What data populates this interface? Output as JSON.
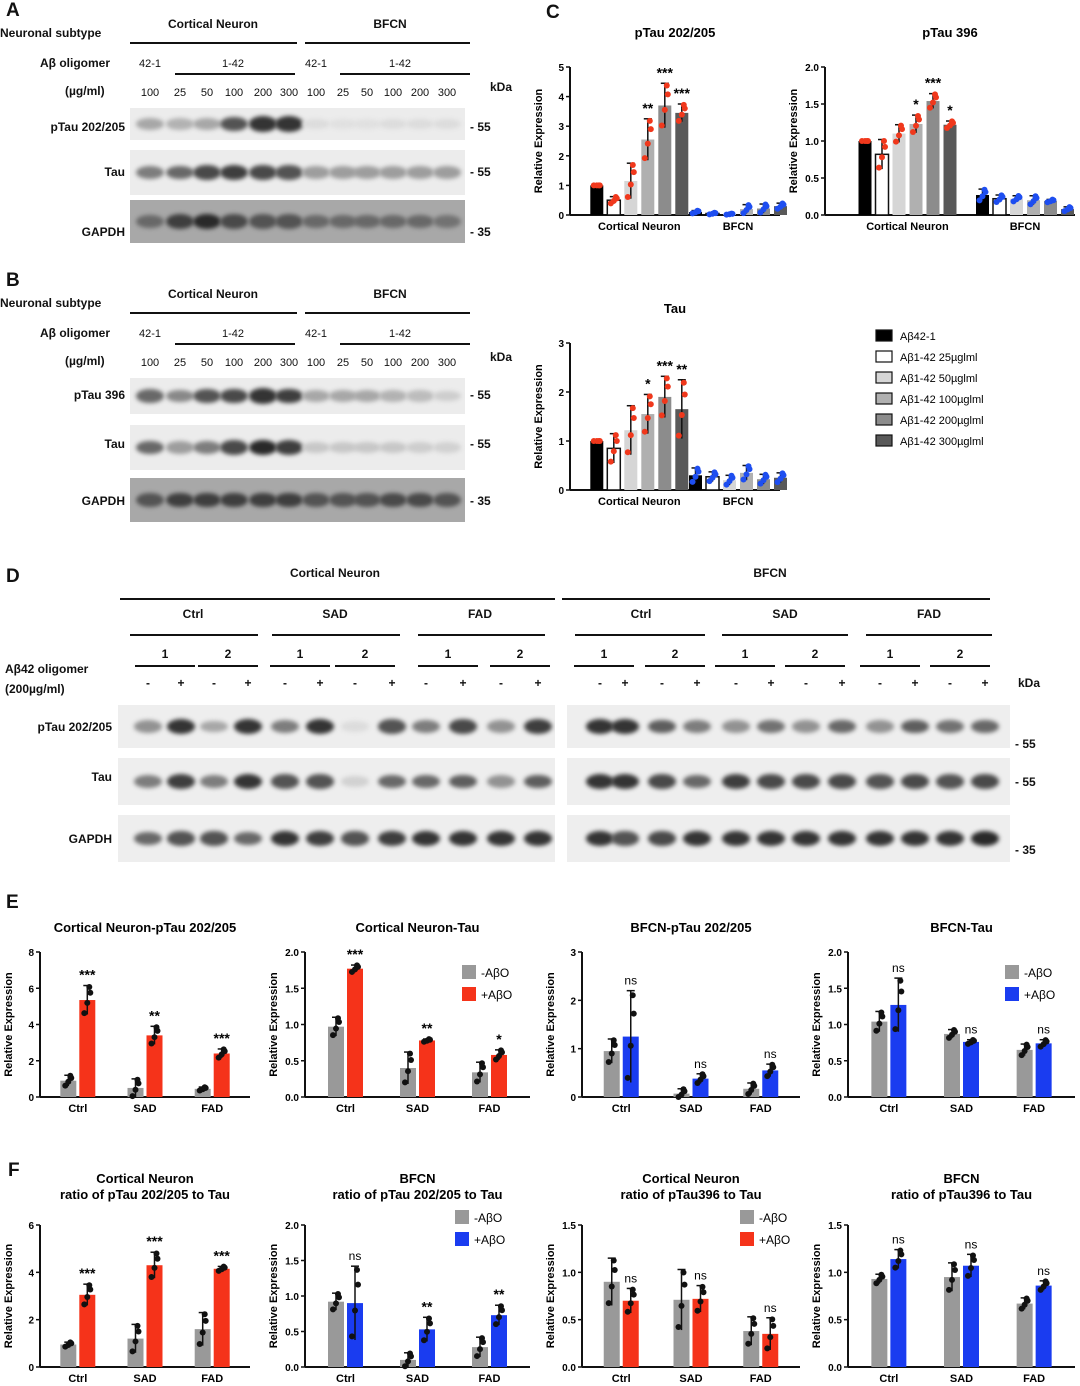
{
  "panels": {
    "A": "A",
    "B": "B",
    "C": "C",
    "D": "D",
    "E": "E",
    "F": "F"
  },
  "blot_labels": {
    "subtype": "Neuronal subtype",
    "oligomer": "Aβ oligomer",
    "conc": "(µg/ml)",
    "cortical": "Cortical Neuron",
    "bfcn": "BFCN",
    "scr": "42-1",
    "ab": "1-42",
    "kda": "kDa",
    "lanes": [
      "100",
      "25",
      "50",
      "100",
      "200",
      "300",
      "100",
      "25",
      "50",
      "100",
      "200",
      "300"
    ]
  },
  "blot_A": {
    "rows": [
      {
        "label": "pTau 202/205",
        "marker": "- 55",
        "intensity": [
          0.3,
          0.25,
          0.3,
          0.7,
          0.85,
          0.85,
          0.05,
          0.03,
          0.03,
          0.05,
          0.05,
          0.05
        ]
      },
      {
        "label": "Tau",
        "marker": "- 55",
        "intensity": [
          0.5,
          0.6,
          0.75,
          0.8,
          0.75,
          0.7,
          0.35,
          0.35,
          0.35,
          0.35,
          0.35,
          0.35
        ]
      },
      {
        "label": "GAPDH",
        "marker": "- 35",
        "intensity": [
          0.6,
          0.8,
          0.9,
          0.75,
          0.7,
          0.7,
          0.6,
          0.6,
          0.6,
          0.6,
          0.6,
          0.55
        ]
      }
    ]
  },
  "blot_B": {
    "rows": [
      {
        "label": "pTau 396",
        "marker": "- 55",
        "intensity": [
          0.6,
          0.45,
          0.7,
          0.75,
          0.85,
          0.8,
          0.3,
          0.3,
          0.3,
          0.25,
          0.2,
          0.12
        ]
      },
      {
        "label": "Tau",
        "marker": "- 55",
        "intensity": [
          0.6,
          0.35,
          0.5,
          0.75,
          0.9,
          0.8,
          0.15,
          0.15,
          0.15,
          0.15,
          0.12,
          0.1
        ]
      },
      {
        "label": "GAPDH",
        "marker": "- 35",
        "intensity": [
          0.7,
          0.8,
          0.8,
          0.8,
          0.8,
          0.8,
          0.7,
          0.7,
          0.7,
          0.75,
          0.75,
          0.7
        ]
      }
    ]
  },
  "blot_D": {
    "cortical": "Cortical Neuron",
    "bfcn": "BFCN",
    "groups": [
      "Ctrl",
      "SAD",
      "FAD",
      "Ctrl",
      "SAD",
      "FAD"
    ],
    "lines": [
      "1",
      "2"
    ],
    "treat": [
      "-",
      "+"
    ],
    "oligomer": "Aβ42  oligomer",
    "conc": "(200µg/ml)",
    "kda": "kDa",
    "rows": [
      {
        "label": "pTau 202/205",
        "marker": "- 55",
        "intensity": [
          0.4,
          0.85,
          0.3,
          0.85,
          0.5,
          0.85,
          0.05,
          0.7,
          0.5,
          0.75,
          0.4,
          0.8,
          0.85,
          0.85,
          0.65,
          0.5,
          0.4,
          0.55,
          0.4,
          0.6,
          0.4,
          0.65,
          0.55,
          0.6
        ]
      },
      {
        "label": "Tau",
        "marker": "- 55",
        "intensity": [
          0.5,
          0.8,
          0.5,
          0.85,
          0.7,
          0.7,
          0.1,
          0.6,
          0.6,
          0.65,
          0.4,
          0.65,
          0.85,
          0.85,
          0.75,
          0.6,
          0.8,
          0.75,
          0.75,
          0.75,
          0.7,
          0.75,
          0.7,
          0.75
        ]
      },
      {
        "label": "GAPDH",
        "marker": "- 35",
        "intensity": [
          0.6,
          0.7,
          0.7,
          0.6,
          0.85,
          0.8,
          0.7,
          0.8,
          0.85,
          0.85,
          0.85,
          0.85,
          0.85,
          0.7,
          0.75,
          0.85,
          0.85,
          0.85,
          0.85,
          0.85,
          0.85,
          0.85,
          0.85,
          0.9
        ]
      }
    ]
  },
  "chart_data": [
    {
      "type": "bar",
      "title": [
        "pTau 202/205"
      ],
      "ylabel": "Relative Expression",
      "ylim": [
        0,
        5
      ],
      "yticks": [
        "0",
        "1",
        "2",
        "3",
        "4",
        "5"
      ],
      "categories": [
        "Cortical Neuron",
        "BFCN"
      ],
      "dot_colors": [
        "#f0381c",
        "#1e4ef0"
      ],
      "series": [
        {
          "name": "Aβ42-1",
          "color": "#000000",
          "values": [
            1,
            0.1
          ],
          "errors": [
            0,
            0.05
          ],
          "sig": [
            "",
            ""
          ]
        },
        {
          "name": "Aβ1-42 25µglml",
          "color": "#ffffff",
          "values": [
            0.5,
            0.05
          ],
          "errors": [
            0.12,
            0.03
          ],
          "sig": [
            "",
            ""
          ]
        },
        {
          "name": "Aβ1-42 50µglml",
          "color": "#d6d6d6",
          "values": [
            1.15,
            0.03
          ],
          "errors": [
            0.6,
            0.02
          ],
          "sig": [
            "",
            ""
          ]
        },
        {
          "name": "Aβ1-42 100µglml",
          "color": "#b0b0b0",
          "values": [
            2.55,
            0.2
          ],
          "errors": [
            0.7,
            0.15
          ],
          "sig": [
            "**",
            ""
          ]
        },
        {
          "name": "Aβ1-42 200µglml",
          "color": "#8c8c8c",
          "values": [
            3.7,
            0.22
          ],
          "errors": [
            0.75,
            0.15
          ],
          "sig": [
            "***",
            ""
          ]
        },
        {
          "name": "Aβ1-42 300µglml",
          "color": "#595959",
          "values": [
            3.45,
            0.3
          ],
          "errors": [
            0.3,
            0.1
          ],
          "sig": [
            "***",
            ""
          ]
        }
      ]
    },
    {
      "type": "bar",
      "title": [
        "pTau 396"
      ],
      "ylabel": "Relative Expression",
      "ylim": [
        0,
        2
      ],
      "yticks": [
        "0.0",
        "0.5",
        "1.0",
        "1.5",
        "2.0"
      ],
      "categories": [
        "Cortical Neuron",
        "BFCN"
      ],
      "dot_colors": [
        "#f0381c",
        "#1e4ef0"
      ],
      "series": [
        {
          "name": "Aβ42-1",
          "color": "#000000",
          "values": [
            1,
            0.27
          ],
          "errors": [
            0,
            0.08
          ],
          "sig": [
            "",
            ""
          ]
        },
        {
          "name": "Aβ1-42 25µglml",
          "color": "#ffffff",
          "values": [
            0.82,
            0.22
          ],
          "errors": [
            0.2,
            0.05
          ],
          "sig": [
            "",
            ""
          ]
        },
        {
          "name": "Aβ1-42 50µglml",
          "color": "#d6d6d6",
          "values": [
            1.1,
            0.22
          ],
          "errors": [
            0.12,
            0.04
          ],
          "sig": [
            "",
            ""
          ]
        },
        {
          "name": "Aβ1-42 100µglml",
          "color": "#b0b0b0",
          "values": [
            1.23,
            0.2
          ],
          "errors": [
            0.12,
            0.06
          ],
          "sig": [
            "*",
            ""
          ]
        },
        {
          "name": "Aβ1-42 200µglml",
          "color": "#8c8c8c",
          "values": [
            1.54,
            0.19
          ],
          "errors": [
            0.1,
            0.02
          ],
          "sig": [
            "***",
            ""
          ]
        },
        {
          "name": "Aβ1-42 300µglml",
          "color": "#595959",
          "values": [
            1.22,
            0.08
          ],
          "errors": [
            0.05,
            0.03
          ],
          "sig": [
            "*",
            ""
          ]
        }
      ]
    },
    {
      "type": "bar",
      "title": [
        "Tau"
      ],
      "ylabel": "Relative Expression",
      "ylim": [
        0,
        3
      ],
      "yticks": [
        "0",
        "1",
        "2",
        "3"
      ],
      "categories": [
        "Cortical Neuron",
        "BFCN"
      ],
      "dot_colors": [
        "#f0381c",
        "#1e4ef0"
      ],
      "series": [
        {
          "name": "Aβ42-1",
          "color": "#000000",
          "values": [
            1,
            0.3
          ],
          "errors": [
            0,
            0.15
          ],
          "sig": [
            "",
            ""
          ]
        },
        {
          "name": "Aβ1-42 25µglml",
          "color": "#ffffff",
          "values": [
            0.85,
            0.27
          ],
          "errors": [
            0.3,
            0.1
          ],
          "sig": [
            "",
            ""
          ]
        },
        {
          "name": "Aβ1-42 50µglml",
          "color": "#d6d6d6",
          "values": [
            1.22,
            0.2
          ],
          "errors": [
            0.5,
            0.1
          ],
          "sig": [
            "",
            ""
          ]
        },
        {
          "name": "Aβ1-42 100µglml",
          "color": "#b0b0b0",
          "values": [
            1.55,
            0.35
          ],
          "errors": [
            0.4,
            0.15
          ],
          "sig": [
            "*",
            ""
          ]
        },
        {
          "name": "Aβ1-42 200µglml",
          "color": "#8c8c8c",
          "values": [
            1.9,
            0.22
          ],
          "errors": [
            0.42,
            0.1
          ],
          "sig": [
            "***",
            ""
          ]
        },
        {
          "name": "Aβ1-42 300µglml",
          "color": "#595959",
          "values": [
            1.65,
            0.25
          ],
          "errors": [
            0.6,
            0.1
          ],
          "sig": [
            "**",
            ""
          ]
        }
      ]
    },
    {
      "type": "bar",
      "title": [
        "Cortical Neuron-pTau 202/205"
      ],
      "ylabel": "Relative Expression",
      "ylim": [
        0,
        8
      ],
      "yticks": [
        "0",
        "2",
        "4",
        "6",
        "8"
      ],
      "categories": [
        "Ctrl",
        "SAD",
        "FAD"
      ],
      "legend": false,
      "series": [
        {
          "name": "-AβO",
          "color": "#999999",
          "values": [
            0.9,
            0.5,
            0.45
          ],
          "errors": [
            0.3,
            0.5,
            0.1
          ],
          "sig": [
            "",
            "",
            ""
          ]
        },
        {
          "name": "+AβO",
          "color": "#f5331a",
          "values": [
            5.35,
            3.4,
            2.4
          ],
          "errors": [
            0.8,
            0.5,
            0.25
          ],
          "sig": [
            "***",
            "**",
            "***"
          ]
        }
      ]
    },
    {
      "type": "bar",
      "title": [
        "Cortical Neuron-Tau"
      ],
      "ylabel": "Relative Expression",
      "ylim": [
        0,
        2
      ],
      "yticks": [
        "0.0",
        "0.5",
        "1.0",
        "1.5",
        "2.0"
      ],
      "categories": [
        "Ctrl",
        "SAD",
        "FAD"
      ],
      "legend": true,
      "series": [
        {
          "name": "-AβO",
          "color": "#999999",
          "values": [
            0.97,
            0.4,
            0.34
          ],
          "errors": [
            0.13,
            0.22,
            0.14
          ],
          "sig": [
            "",
            "",
            ""
          ]
        },
        {
          "name": "+AβO",
          "color": "#f5331a",
          "values": [
            1.77,
            0.78,
            0.58
          ],
          "errors": [
            0.05,
            0.02,
            0.07
          ],
          "sig": [
            "***",
            "**",
            "*"
          ]
        }
      ]
    },
    {
      "type": "bar",
      "title": [
        "BFCN-pTau 202/205"
      ],
      "ylabel": "Relative Expression",
      "ylim": [
        0,
        3
      ],
      "yticks": [
        "0",
        "1",
        "2",
        "3"
      ],
      "categories": [
        "Ctrl",
        "SAD",
        "FAD"
      ],
      "legend": false,
      "series": [
        {
          "name": "-AβO",
          "color": "#999999",
          "values": [
            0.95,
            0.07,
            0.17
          ],
          "errors": [
            0.25,
            0.1,
            0.12
          ],
          "sig": [
            "",
            "",
            ""
          ]
        },
        {
          "name": "+AβO",
          "color": "#1a3cf0",
          "values": [
            1.25,
            0.38,
            0.55
          ],
          "errors": [
            0.95,
            0.1,
            0.13
          ],
          "sig": [
            "ns",
            "ns",
            "ns"
          ]
        }
      ]
    },
    {
      "type": "bar",
      "title": [
        "BFCN-Tau"
      ],
      "ylabel": "Relative Expression",
      "ylim": [
        0,
        2
      ],
      "yticks": [
        "0.0",
        "0.5",
        "1.0",
        "1.5",
        "2.0"
      ],
      "categories": [
        "Ctrl",
        "SAD",
        "FAD"
      ],
      "legend": true,
      "series": [
        {
          "name": "-AβO",
          "color": "#999999",
          "values": [
            1.04,
            0.87,
            0.65
          ],
          "errors": [
            0.14,
            0.06,
            0.08
          ],
          "sig": [
            "",
            "",
            ""
          ]
        },
        {
          "name": "+AβO",
          "color": "#1a3cf0",
          "values": [
            1.27,
            0.76,
            0.74
          ],
          "errors": [
            0.37,
            0.03,
            0.05
          ],
          "sig": [
            "ns",
            "ns",
            "ns"
          ]
        }
      ]
    },
    {
      "type": "bar",
      "title": [
        "Cortical Neuron",
        "ratio of pTau 202/205 to Tau"
      ],
      "ylabel": "Relative Expression",
      "ylim": [
        0,
        6
      ],
      "yticks": [
        "0",
        "2",
        "4",
        "6"
      ],
      "categories": [
        "Ctrl",
        "SAD",
        "FAD"
      ],
      "legend": false,
      "series": [
        {
          "name": "-AβO",
          "color": "#999999",
          "values": [
            0.95,
            1.2,
            1.6
          ],
          "errors": [
            0.1,
            0.6,
            0.7
          ],
          "sig": [
            "",
            "",
            ""
          ]
        },
        {
          "name": "+AβO",
          "color": "#f5331a",
          "values": [
            3.05,
            4.3,
            4.15
          ],
          "errors": [
            0.45,
            0.55,
            0.1
          ],
          "sig": [
            "***",
            "***",
            "***"
          ]
        }
      ]
    },
    {
      "type": "bar",
      "title": [
        "BFCN",
        "ratio of pTau 202/205 to Tau"
      ],
      "ylabel": "Relative Expression",
      "ylim": [
        0,
        2
      ],
      "yticks": [
        "0.0",
        "0.5",
        "1.0",
        "1.5",
        "2.0"
      ],
      "categories": [
        "Ctrl",
        "SAD",
        "FAD"
      ],
      "legend": true,
      "series": [
        {
          "name": "-AβO",
          "color": "#999999",
          "values": [
            0.92,
            0.1,
            0.28
          ],
          "errors": [
            0.12,
            0.1,
            0.14
          ],
          "sig": [
            "",
            "",
            ""
          ]
        },
        {
          "name": "+AβO",
          "color": "#1a3cf0",
          "values": [
            0.9,
            0.53,
            0.73
          ],
          "errors": [
            0.52,
            0.17,
            0.14
          ],
          "sig": [
            "ns",
            "**",
            "**"
          ]
        }
      ]
    },
    {
      "type": "bar",
      "title": [
        "Cortical Neuron",
        "ratio of pTau396 to Tau"
      ],
      "ylabel": "Relative Expression",
      "ylim": [
        0,
        1.5
      ],
      "yticks": [
        "0.0",
        "0.5",
        "1.0",
        "1.5"
      ],
      "categories": [
        "Ctrl",
        "SAD",
        "FAD"
      ],
      "legend": true,
      "series": [
        {
          "name": "-AβO",
          "color": "#999999",
          "values": [
            0.9,
            0.71,
            0.38
          ],
          "errors": [
            0.25,
            0.32,
            0.15
          ],
          "sig": [
            "",
            "",
            ""
          ]
        },
        {
          "name": "+AβO",
          "color": "#f5331a",
          "values": [
            0.7,
            0.72,
            0.35
          ],
          "errors": [
            0.13,
            0.14,
            0.17
          ],
          "sig": [
            "ns",
            "ns",
            "ns"
          ]
        }
      ]
    },
    {
      "type": "bar",
      "title": [
        "BFCN",
        "ratio of pTau396 to Tau"
      ],
      "ylabel": "Relative Expression",
      "ylim": [
        0,
        1.5
      ],
      "yticks": [
        "0.0",
        "0.5",
        "1.0",
        "1.5"
      ],
      "categories": [
        "Ctrl",
        "SAD",
        "FAD"
      ],
      "legend": false,
      "series": [
        {
          "name": "-AβO",
          "color": "#999999",
          "values": [
            0.93,
            0.95,
            0.67
          ],
          "errors": [
            0.05,
            0.15,
            0.06
          ],
          "sig": [
            "",
            "",
            ""
          ]
        },
        {
          "name": "+AβO",
          "color": "#1a3cf0",
          "values": [
            1.14,
            1.07,
            0.86
          ],
          "errors": [
            0.1,
            0.12,
            0.05
          ],
          "sig": [
            "ns",
            "ns",
            "ns"
          ]
        }
      ]
    }
  ]
}
